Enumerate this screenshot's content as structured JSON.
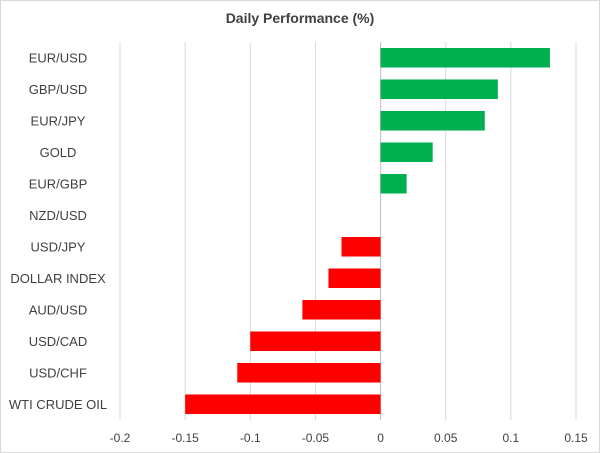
{
  "chart_data": {
    "type": "bar",
    "orientation": "horizontal",
    "title": "Daily Performance (%)",
    "categories": [
      "EUR/USD",
      "GBP/USD",
      "EUR/JPY",
      "GOLD",
      "EUR/GBP",
      "NZD/USD",
      "USD/JPY",
      "DOLLAR INDEX",
      "AUD/USD",
      "USD/CAD",
      "USD/CHF",
      "WTI CRUDE OIL"
    ],
    "values": [
      0.13,
      0.09,
      0.08,
      0.04,
      0.02,
      0,
      -0.03,
      -0.04,
      -0.06,
      -0.1,
      -0.11,
      -0.15
    ],
    "xlim": [
      -0.2,
      0.15
    ],
    "xticks": [
      -0.2,
      -0.15,
      -0.1,
      -0.05,
      0,
      0.05,
      0.1,
      0.15
    ],
    "xtick_labels": [
      "-0.2",
      "-0.15",
      "-0.1",
      "-0.05",
      "0",
      "0.05",
      "0.1",
      "0.15"
    ],
    "grid": "vertical",
    "colors": {
      "positive": "#00b050",
      "negative": "#ff0000",
      "grid": "#d9d9d9",
      "axis": "#bfbfbf",
      "text": "#404040"
    }
  }
}
